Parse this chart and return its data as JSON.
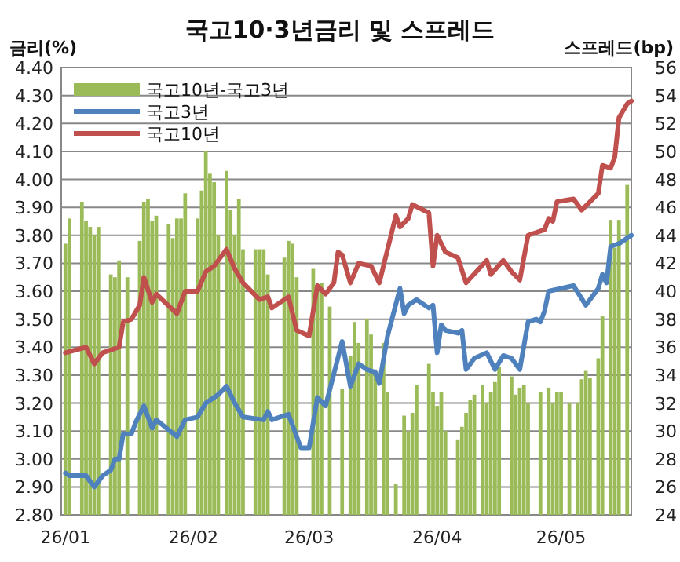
{
  "chart_data": {
    "type": "line",
    "title": "국고10·3년금리 및 스프레드",
    "ylabel": "금리(%)",
    "y2label": "스프레드(bp)",
    "xlim": [
      "--01-25",
      "--06-12"
    ],
    "xticks": [
      {
        "value": "--01-26",
        "label": "26/01"
      },
      {
        "value": "--02-26",
        "label": "26/02"
      },
      {
        "value": "--03-26",
        "label": "26/03"
      },
      {
        "value": "--04-26",
        "label": "26/04"
      },
      {
        "value": "--05-26",
        "label": "26/05"
      }
    ],
    "ylim": [
      2.8,
      4.4
    ],
    "yticks": [
      {
        "value": 2.8,
        "label": "2.80"
      },
      {
        "value": 2.9,
        "label": "2.90"
      },
      {
        "value": 3.0,
        "label": "3.00"
      },
      {
        "value": 3.1,
        "label": "3.10"
      },
      {
        "value": 3.2,
        "label": "3.20"
      },
      {
        "value": 3.3,
        "label": "3.30"
      },
      {
        "value": 3.4,
        "label": "3.40"
      },
      {
        "value": 3.5,
        "label": "3.50"
      },
      {
        "value": 3.6,
        "label": "3.60"
      },
      {
        "value": 3.7,
        "label": "3.70"
      },
      {
        "value": 3.8,
        "label": "3.80"
      },
      {
        "value": 3.9,
        "label": "3.90"
      },
      {
        "value": 4.0,
        "label": "4.00"
      },
      {
        "value": 4.1,
        "label": "4.10"
      },
      {
        "value": 4.2,
        "label": "4.20"
      },
      {
        "value": 4.3,
        "label": "4.30"
      },
      {
        "value": 4.4,
        "label": "4.40"
      }
    ],
    "y2lim": [
      24,
      56
    ],
    "y2ticks": [
      24,
      26,
      28,
      30,
      32,
      34,
      36,
      38,
      40,
      42,
      44,
      46,
      48,
      50,
      52,
      54,
      56
    ],
    "grid": "y",
    "legend": "top left",
    "series": [
      {
        "name": "국고10년-국고3년",
        "type": "bar",
        "axis": "y2",
        "color": "#9bbb59",
        "x": [
          "--01-26",
          "--01-27",
          "--01-30",
          "--01-31",
          "--02-01",
          "--02-02",
          "--02-03",
          "--02-06",
          "--02-07",
          "--02-08",
          "--02-10",
          "--02-13",
          "--02-14",
          "--02-15",
          "--02-16",
          "--02-17",
          "--02-20",
          "--02-21",
          "--02-22",
          "--02-23",
          "--02-24",
          "--02-27",
          "--02-28",
          "--03-01",
          "--03-02",
          "--03-03",
          "--03-04",
          "--03-06",
          "--03-07",
          "--03-08",
          "--03-09",
          "--03-10",
          "--03-13",
          "--03-14",
          "--03-15",
          "--03-16",
          "--03-20",
          "--03-21",
          "--03-22",
          "--03-23",
          "--03-27",
          "--03-28",
          "--03-29",
          "--03-31",
          "--04-03",
          "--04-05",
          "--04-06",
          "--04-07",
          "--04-09",
          "--04-10",
          "--04-11",
          "--04-13",
          "--04-14",
          "--04-16",
          "--04-18",
          "--04-19",
          "--04-20",
          "--04-21",
          "--04-24",
          "--04-25",
          "--04-26",
          "--04-27",
          "--04-28",
          "--05-01",
          "--05-02",
          "--05-03",
          "--05-04",
          "--05-05",
          "--05-07",
          "--05-08",
          "--05-09",
          "--05-10",
          "--05-11",
          "--05-14",
          "--05-15",
          "--05-16",
          "--05-17",
          "--05-18",
          "--05-21",
          "--05-23",
          "--05-24",
          "--05-25",
          "--05-26",
          "--05-28",
          "--05-30",
          "--05-31",
          "--06-01",
          "--06-02",
          "--06-04",
          "--06-05",
          "--06-07",
          "--06-08",
          "--06-09",
          "--06-11"
        ],
        "values": [
          43.4,
          45.2,
          46.4,
          45.0,
          44.6,
          44.0,
          44.6,
          41.2,
          41.0,
          42.2,
          41.0,
          43.6,
          46.4,
          46.6,
          45.0,
          45.4,
          44.8,
          43.8,
          45.2,
          45.2,
          47.0,
          45.2,
          47.2,
          50.0,
          48.4,
          47.8,
          44.0,
          48.6,
          45.8,
          44.0,
          46.6,
          43.0,
          43.0,
          43.0,
          43.0,
          41.2,
          42.4,
          43.6,
          43.4,
          41.0,
          41.6,
          40.3,
          40.6,
          38.9,
          33.0,
          35.4,
          37.8,
          36.3,
          38.0,
          36.9,
          34.4,
          36.3,
          32.8,
          26.2,
          31.1,
          30.0,
          31.3,
          33.3,
          34.8,
          32.8,
          31.8,
          32.8,
          30.0,
          29.4,
          30.3,
          31.3,
          32.2,
          32.6,
          33.3,
          32.0,
          32.8,
          33.5,
          34.6,
          33.9,
          32.6,
          33.1,
          33.3,
          32.0,
          32.8,
          33.1,
          32.0,
          32.8,
          32.8,
          32.0,
          32.0,
          33.7,
          34.3,
          33.8,
          35.2,
          38.2,
          45.1,
          43.1,
          45.1,
          47.6
        ]
      },
      {
        "name": "국고3년",
        "color": "#4f81bd",
        "x": [
          "--01-26",
          "--01-27",
          "--01-30",
          "--01-31",
          "--02-02",
          "--02-04",
          "--02-06",
          "--02-07",
          "--02-08",
          "--02-09",
          "--02-11",
          "--02-12",
          "--02-14",
          "--02-16",
          "--02-17",
          "--02-22",
          "--02-24",
          "--02-27",
          "--03-01",
          "--03-02",
          "--03-04",
          "--03-06",
          "--03-08",
          "--03-10",
          "--03-15",
          "--03-16",
          "--03-17",
          "--03-21",
          "--03-24",
          "--03-26",
          "--03-28",
          "--03-30",
          "--04-03",
          "--04-05",
          "--04-07",
          "--04-09",
          "--04-11",
          "--04-12",
          "--04-14",
          "--04-17",
          "--04-18",
          "--04-19",
          "--04-21",
          "--04-24",
          "--04-25",
          "--04-26",
          "--04-27",
          "--04-28",
          "--05-01",
          "--05-02",
          "--05-03",
          "--05-05",
          "--05-08",
          "--05-10",
          "--05-12",
          "--05-14",
          "--05-16",
          "--05-18",
          "--05-20",
          "--05-21",
          "--05-22",
          "--05-23",
          "--05-29",
          "--06-01",
          "--06-04",
          "--06-05",
          "--06-06",
          "--06-07",
          "--06-09",
          "--06-12"
        ],
        "values": [
          2.95,
          2.94,
          2.94,
          2.94,
          2.9,
          2.94,
          2.96,
          3.0,
          3.0,
          3.09,
          3.09,
          3.13,
          3.19,
          3.11,
          3.14,
          3.08,
          3.14,
          3.15,
          3.2,
          3.21,
          3.23,
          3.26,
          3.2,
          3.15,
          3.14,
          3.17,
          3.14,
          3.16,
          3.04,
          3.04,
          3.22,
          3.19,
          3.42,
          3.26,
          3.34,
          3.32,
          3.31,
          3.27,
          3.44,
          3.61,
          3.52,
          3.55,
          3.57,
          3.54,
          3.55,
          3.38,
          3.48,
          3.46,
          3.45,
          3.46,
          3.32,
          3.36,
          3.38,
          3.32,
          3.37,
          3.36,
          3.32,
          3.49,
          3.5,
          3.49,
          3.53,
          3.6,
          3.62,
          3.55,
          3.61,
          3.66,
          3.63,
          3.76,
          3.77,
          3.8
        ]
      },
      {
        "name": "국고10년",
        "color": "#c0504d",
        "x": [
          "--01-26",
          "--01-31",
          "--02-02",
          "--02-04",
          "--02-08",
          "--02-09",
          "--02-11",
          "--02-13",
          "--02-14",
          "--02-16",
          "--02-17",
          "--02-22",
          "--02-24",
          "--02-27",
          "--03-01",
          "--03-03",
          "--03-06",
          "--03-08",
          "--03-10",
          "--03-14",
          "--03-16",
          "--03-17",
          "--03-21",
          "--03-23",
          "--03-26",
          "--03-28",
          "--03-30",
          "--04-01",
          "--04-02",
          "--04-03",
          "--04-05",
          "--04-07",
          "--04-10",
          "--04-12",
          "--04-16",
          "--04-17",
          "--04-19",
          "--04-20",
          "--04-24",
          "--04-25",
          "--04-26",
          "--04-28",
          "--05-01",
          "--05-03",
          "--05-08",
          "--05-09",
          "--05-12",
          "--05-14",
          "--05-16",
          "--05-18",
          "--05-22",
          "--05-23",
          "--05-24",
          "--05-25",
          "--05-29",
          "--05-31",
          "--06-04",
          "--06-05",
          "--06-07",
          "--06-08",
          "--06-09",
          "--06-11",
          "--06-12"
        ],
        "values": [
          3.38,
          3.4,
          3.34,
          3.38,
          3.4,
          3.49,
          3.5,
          3.55,
          3.65,
          3.56,
          3.59,
          3.52,
          3.6,
          3.6,
          3.67,
          3.69,
          3.75,
          3.68,
          3.63,
          3.57,
          3.58,
          3.54,
          3.58,
          3.46,
          3.44,
          3.62,
          3.59,
          3.63,
          3.74,
          3.73,
          3.63,
          3.7,
          3.69,
          3.63,
          3.87,
          3.83,
          3.86,
          3.91,
          3.88,
          3.69,
          3.8,
          3.74,
          3.72,
          3.63,
          3.71,
          3.66,
          3.71,
          3.67,
          3.64,
          3.8,
          3.82,
          3.86,
          3.85,
          3.92,
          3.93,
          3.89,
          3.95,
          4.05,
          4.04,
          4.08,
          4.22,
          4.27,
          4.28
        ]
      }
    ]
  }
}
